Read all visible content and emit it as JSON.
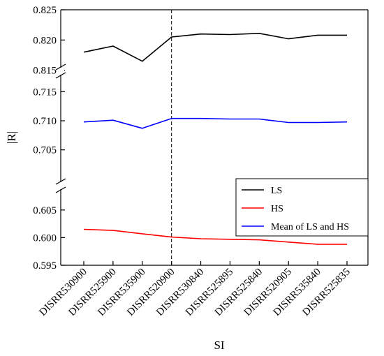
{
  "chart_data": {
    "type": "line",
    "title": "",
    "xlabel": "SI",
    "ylabel": "|R|",
    "categories": [
      "DISRR530900",
      "DISRR525900",
      "DISRR535900",
      "DISRR520900",
      "DISRR530840",
      "DISRR525895",
      "DISRR525840",
      "DISRR520905",
      "DISRR535840",
      "DISRR525835"
    ],
    "y_segments": [
      {
        "range": [
          0.595,
          0.607
        ],
        "ticks": [
          "0.595",
          "0.600",
          "0.605"
        ]
      },
      {
        "range": [
          0.701,
          0.716
        ],
        "ticks": [
          "0.705",
          "0.710",
          "0.715"
        ]
      },
      {
        "range": [
          0.813,
          0.825
        ],
        "ticks": [
          "0.815",
          "0.820",
          "0.825"
        ]
      }
    ],
    "axis_break": true,
    "reference_line_category": "DISRR520900",
    "grid": false,
    "legend_position": "lower-right",
    "series": [
      {
        "name": "LS",
        "color": "#000000",
        "values": [
          0.818,
          0.819,
          0.8165,
          0.8205,
          0.821,
          0.8209,
          0.8211,
          0.8202,
          0.8208,
          0.8208
        ]
      },
      {
        "name": "HS",
        "color": "#ff0000",
        "values": [
          0.6015,
          0.6013,
          0.6007,
          0.6001,
          0.5998,
          0.5997,
          0.5996,
          0.5992,
          0.5988,
          0.5988
        ]
      },
      {
        "name": "Mean of LS and HS",
        "color": "#0000ff",
        "values": [
          0.7098,
          0.7101,
          0.7087,
          0.7104,
          0.7104,
          0.7103,
          0.7103,
          0.7097,
          0.7097,
          0.7098
        ]
      }
    ]
  }
}
